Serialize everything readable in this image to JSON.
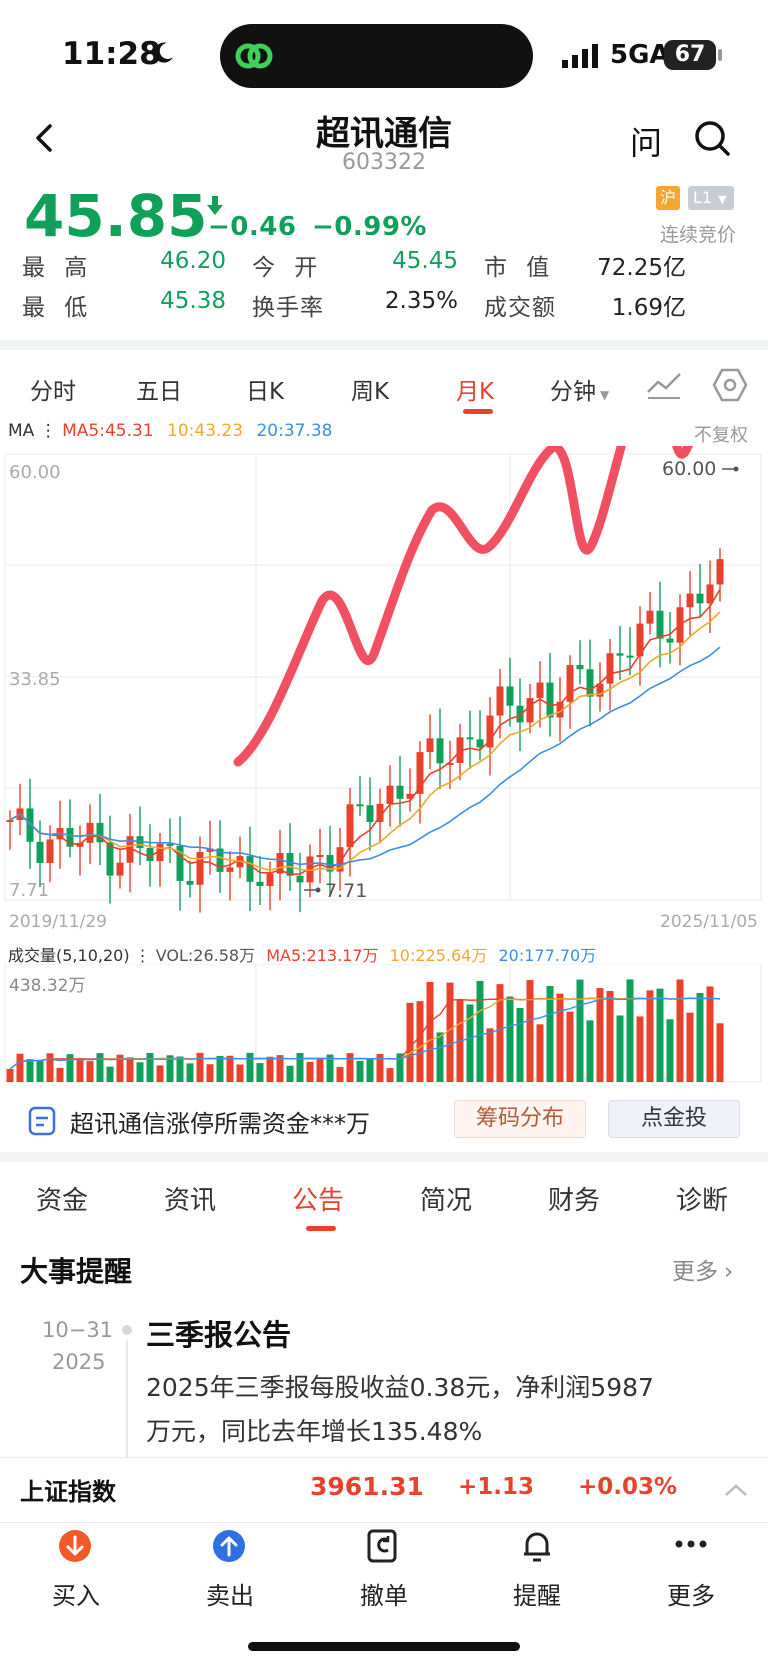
{
  "status": {
    "time": "11:28",
    "network": "5GA",
    "battery": "67"
  },
  "header": {
    "title": "超讯通信",
    "code": "603322",
    "ask_label": "问"
  },
  "quote": {
    "price": "45.85",
    "change": "−0.46",
    "change_pct": "−0.99%",
    "exchange_badge": "沪",
    "level_badge": "L1",
    "session": "连续竞价",
    "stats": [
      {
        "label": "最 高",
        "value": "46.20",
        "tone": "green"
      },
      {
        "label": "今 开",
        "value": "45.45",
        "tone": "green"
      },
      {
        "label": "市 值",
        "value": "72.25亿",
        "tone": "dark"
      },
      {
        "label": "最 低",
        "value": "45.38",
        "tone": "green"
      },
      {
        "label": "换手率",
        "value": "2.35%",
        "tone": "dark"
      },
      {
        "label": "成交额",
        "value": "1.69亿",
        "tone": "dark"
      }
    ]
  },
  "chart_tabs": [
    "分时",
    "五日",
    "日K",
    "周K",
    "月K",
    "分钟"
  ],
  "chart_tab_active": 4,
  "ma_legend": {
    "label": "MA",
    "ma5": "MA5:45.31",
    "ma10": "10:43.23",
    "ma20": "20:37.38",
    "adjust": "不复权"
  },
  "colors": {
    "up": "#e8412c",
    "down": "#11a05a",
    "ma5": "#e8412c",
    "ma10": "#f0a830",
    "ma20": "#3d8fe0",
    "overlay": "#f05062"
  },
  "chart_data": {
    "type": "candlestick",
    "y_ticks": [
      "60.00",
      "33.85",
      "7.71"
    ],
    "ylim": [
      7.71,
      60.0
    ],
    "x_start": "2019/11/29",
    "x_end": "2025/11/05",
    "annotations": [
      "60.00",
      "7.71"
    ],
    "volume": {
      "legend": "成交量(5,10,20)",
      "vol": "VOL:26.58万",
      "ma5": "MA5:213.17万",
      "ma10": "10:225.64万",
      "ma20": "20:177.70万",
      "max_tick": "438.32万"
    }
  },
  "news": {
    "text": "超讯通信涨停所需资金***万",
    "btn_chips": "筹码分布",
    "btn_invest": "点金投"
  },
  "feature_tabs": [
    "资金",
    "资讯",
    "公告",
    "简况",
    "财务",
    "诊断"
  ],
  "feature_tab_active": 2,
  "events": {
    "title": "大事提醒",
    "more": "更多",
    "items": [
      {
        "date": "10−31",
        "year": "2025",
        "title": "三季报公告",
        "line1": "2025年三季报每股收益0.38元，净利润5987",
        "line2": "万元，同比去年增长135.48%"
      }
    ]
  },
  "index_bar": {
    "name": "上证指数",
    "value": "3961.31",
    "change": "+1.13",
    "pct": "+0.03%"
  },
  "bottom_nav": [
    "买入",
    "卖出",
    "撤单",
    "提醒",
    "更多"
  ]
}
